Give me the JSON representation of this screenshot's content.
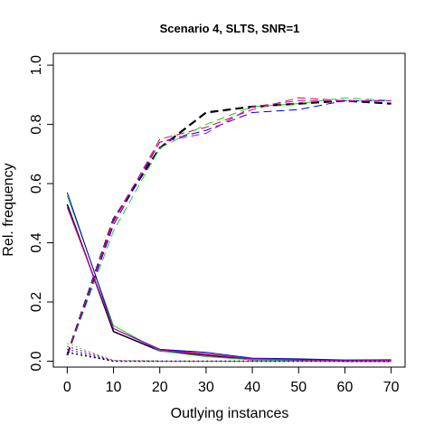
{
  "chart_data": {
    "type": "line",
    "title": "Scenario 4, SLTS, SNR=1",
    "xlabel": "Outlying instances",
    "ylabel": "Rel. frequency",
    "xlim": [
      -3,
      73
    ],
    "ylim": [
      -0.02,
      1.04
    ],
    "xticks": [
      0,
      10,
      20,
      30,
      40,
      50,
      60,
      70
    ],
    "yticks": [
      0.0,
      0.2,
      0.4,
      0.6,
      0.8,
      1.0
    ],
    "x": [
      0,
      10,
      20,
      30,
      40,
      50,
      60,
      70
    ],
    "grid": false,
    "legend": "none",
    "series": [
      {
        "color": "#000000",
        "style": "dashed",
        "width": 2.2,
        "values": [
          0.02,
          0.48,
          0.72,
          0.84,
          0.86,
          0.87,
          0.88,
          0.87
        ]
      },
      {
        "color": "#e0004c",
        "style": "dashed",
        "width": 1,
        "values": [
          0.02,
          0.47,
          0.75,
          0.79,
          0.85,
          0.89,
          0.88,
          0.88
        ]
      },
      {
        "color": "#22cc22",
        "style": "dashed",
        "width": 1,
        "values": [
          0.02,
          0.44,
          0.72,
          0.8,
          0.86,
          0.87,
          0.89,
          0.88
        ]
      },
      {
        "color": "#0000cc",
        "style": "dashed",
        "width": 1,
        "values": [
          0.02,
          0.46,
          0.74,
          0.78,
          0.84,
          0.85,
          0.88,
          0.88
        ]
      },
      {
        "color": "#cc00cc",
        "style": "dashed",
        "width": 1,
        "values": [
          0.02,
          0.48,
          0.74,
          0.77,
          0.86,
          0.88,
          0.88,
          0.88
        ]
      },
      {
        "color": "#000000",
        "style": "solid",
        "width": 1.5,
        "values": [
          0.53,
          0.1,
          0.035,
          0.02,
          0.005,
          0.005,
          0.0,
          0.0
        ]
      },
      {
        "color": "#e0004c",
        "style": "solid",
        "width": 1,
        "values": [
          0.52,
          0.11,
          0.04,
          0.025,
          0.008,
          0.003,
          0.002,
          0.003
        ]
      },
      {
        "color": "#22cc22",
        "style": "solid",
        "width": 1,
        "values": [
          0.56,
          0.12,
          0.035,
          0.015,
          0.005,
          0.002,
          0.001,
          0.002
        ]
      },
      {
        "color": "#0000cc",
        "style": "solid",
        "width": 1,
        "values": [
          0.57,
          0.11,
          0.04,
          0.03,
          0.01,
          0.008,
          0.004,
          0.005
        ]
      },
      {
        "color": "#cc00cc",
        "style": "solid",
        "width": 1,
        "values": [
          0.52,
          0.11,
          0.038,
          0.022,
          0.008,
          0.004,
          0.002,
          0.003
        ]
      },
      {
        "color": "#000000",
        "style": "dotted",
        "width": 1.5,
        "values": [
          0.03,
          0.0,
          0.0,
          0.0,
          0.0,
          0.0,
          0.0,
          0.0
        ]
      },
      {
        "color": "#e0004c",
        "style": "dotted",
        "width": 1,
        "values": [
          0.05,
          0.002,
          0.0,
          0.0,
          0.0,
          0.0,
          0.0,
          0.0
        ]
      },
      {
        "color": "#22cc22",
        "style": "dotted",
        "width": 1,
        "values": [
          0.06,
          0.002,
          0.0,
          0.0,
          0.0,
          0.0,
          0.0,
          0.0
        ]
      },
      {
        "color": "#0000cc",
        "style": "dotted",
        "width": 1,
        "values": [
          0.04,
          0.001,
          0.0,
          0.0,
          0.0,
          0.0,
          0.0,
          0.0
        ]
      },
      {
        "color": "#cc00cc",
        "style": "dotted",
        "width": 1,
        "values": [
          0.05,
          0.002,
          0.0,
          0.0,
          0.0,
          0.0,
          0.0,
          0.0
        ]
      }
    ]
  }
}
